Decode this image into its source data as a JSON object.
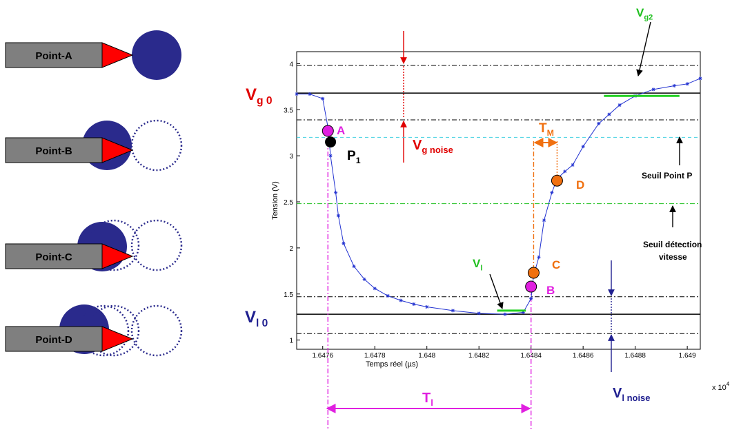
{
  "chart_data": {
    "type": "line",
    "xlabel": "Temps réel (µs)",
    "ylabel": "Tension (V)",
    "x_multiplier": {
      "text": "x 10",
      "exp": "4"
    },
    "xlim": [
      1.6475,
      1.64905
    ],
    "ylim": [
      0.9,
      4.13
    ],
    "xticks": [
      1.6476,
      1.6478,
      1.648,
      1.6482,
      1.6484,
      1.6486,
      1.6488,
      1.649
    ],
    "yticks": [
      1,
      1.5,
      2,
      2.5,
      3,
      3.5,
      4
    ],
    "series": [
      {
        "color": "#2030d0",
        "x": [
          1.6475,
          1.64755,
          1.6476,
          1.64762,
          1.64763,
          1.64765,
          1.64766,
          1.64768,
          1.64772,
          1.64776,
          1.6478,
          1.64785,
          1.6479,
          1.64795,
          1.648,
          1.6481,
          1.6482,
          1.6483,
          1.64837,
          1.6484,
          1.64841,
          1.64843,
          1.64845,
          1.64848,
          1.6485,
          1.64853,
          1.64856,
          1.6486,
          1.64866,
          1.6487,
          1.64874,
          1.6488,
          1.64887,
          1.64895,
          1.649,
          1.64905
        ],
        "values": [
          3.67,
          3.67,
          3.62,
          3.31,
          3.0,
          2.6,
          2.35,
          2.05,
          1.8,
          1.66,
          1.56,
          1.48,
          1.43,
          1.39,
          1.36,
          1.32,
          1.29,
          1.28,
          1.3,
          1.45,
          1.7,
          1.9,
          2.3,
          2.6,
          2.75,
          2.83,
          2.9,
          3.1,
          3.35,
          3.45,
          3.55,
          3.65,
          3.72,
          3.76,
          3.78,
          3.84
        ]
      }
    ],
    "reference_lines": [
      {
        "value": 3.98,
        "style": "dashdot",
        "color": "#000000"
      },
      {
        "value": 3.68,
        "style": "solid",
        "color": "#000000"
      },
      {
        "value": 3.39,
        "style": "dashdot",
        "color": "#000000"
      },
      {
        "value": 3.2,
        "style": "dash",
        "color": "#40d0e0"
      },
      {
        "value": 2.48,
        "style": "dashdot",
        "color": "#20c020"
      },
      {
        "value": 1.47,
        "style": "dashdot",
        "color": "#000000"
      },
      {
        "value": 1.28,
        "style": "solid",
        "color": "#000000"
      },
      {
        "value": 1.07,
        "style": "dashdot",
        "color": "#000000"
      }
    ],
    "level_segments": [
      {
        "y": 1.32,
        "x": [
          1.64827,
          1.64838
        ],
        "color": "#20d020"
      },
      {
        "y": 3.65,
        "x": [
          1.64868,
          1.64897
        ],
        "color": "#20d020"
      }
    ],
    "markers": [
      {
        "label": "A",
        "x": 1.64762,
        "y": 3.27,
        "color": "#e020e0"
      },
      {
        "label": "B",
        "x": 1.6484,
        "y": 1.58,
        "color": "#e020e0"
      },
      {
        "label": "C",
        "x": 1.64841,
        "y": 1.73,
        "color": "#f07010"
      },
      {
        "label": "D",
        "x": 1.6485,
        "y": 2.73,
        "color": "#f07010"
      }
    ],
    "point_p1": {
      "x": 1.64763,
      "y": 3.15,
      "color": "#000000",
      "text": "P",
      "sub": "1"
    },
    "annotations": [
      {
        "text": "V",
        "sub": "g 0",
        "color": "#e00000"
      },
      {
        "text": "V",
        "sub": "l 0",
        "color": "#202090"
      },
      {
        "text": "V",
        "sub": "g noise",
        "color": "#e00000"
      },
      {
        "text": "V",
        "sub": "l noise",
        "color": "#202090"
      },
      {
        "text": "T",
        "sub": "M",
        "color": "#f07010"
      },
      {
        "text": "T",
        "sub": "l",
        "color": "#e020e0"
      },
      {
        "text": "V",
        "sub": "l",
        "color": "#20c020"
      },
      {
        "text": "V",
        "sub": "g2",
        "color": "#20c020"
      }
    ],
    "notes": [
      "Seuil Point P",
      "Seuil détection",
      "vitesse"
    ]
  },
  "diagrams": [
    {
      "label": "Point-A"
    },
    {
      "label": "Point-B"
    },
    {
      "label": "Point-C"
    },
    {
      "label": "Point-D"
    }
  ]
}
